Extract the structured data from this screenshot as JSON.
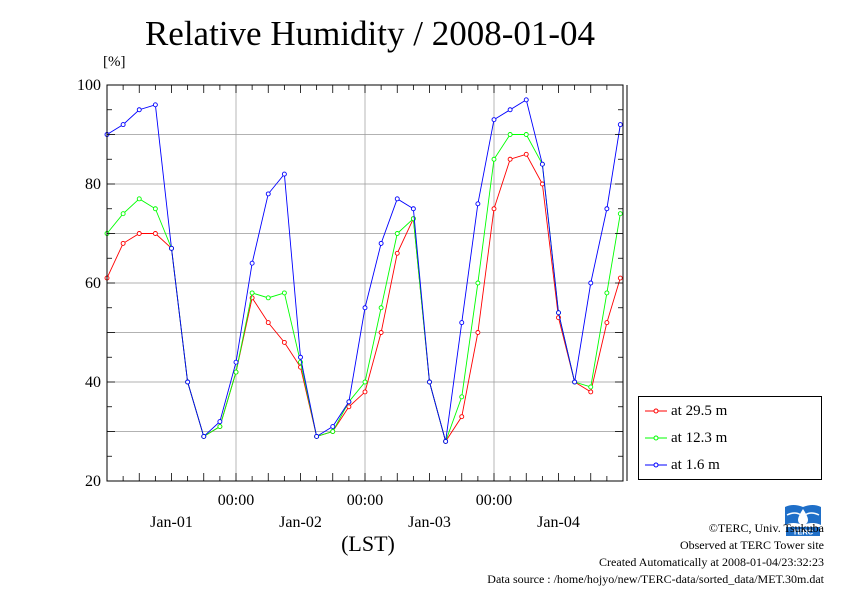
{
  "title": "Relative Humidity / 2008-01-04",
  "y_unit": "[%]",
  "x_label": "(LST)",
  "chart_data": {
    "type": "line",
    "title": "Relative Humidity / 2008-01-04",
    "ylabel": "[%]",
    "xlabel": "(LST)",
    "ylim": [
      20,
      100
    ],
    "y_ticks": [
      "20",
      "40",
      "60",
      "80",
      "100"
    ],
    "xlim": [
      "2008-01-01 00:00",
      "2008-01-05 00:00"
    ],
    "x_tick_labels": [
      {
        "time": "2008-01-02 00:00",
        "label": "00:00"
      },
      {
        "time": "2008-01-03 00:00",
        "label": "00:00"
      },
      {
        "time": "2008-01-04 00:00",
        "label": "00:00"
      }
    ],
    "day_labels": [
      {
        "time": "2008-01-01 12:00",
        "label": "Jan-01"
      },
      {
        "time": "2008-01-02 12:00",
        "label": "Jan-02"
      },
      {
        "time": "2008-01-03 12:00",
        "label": "Jan-03"
      },
      {
        "time": "2008-01-04 12:00",
        "label": "Jan-04"
      }
    ],
    "grid": true,
    "legend_position": "bottom-right, outside plot",
    "x_times": [
      "2008-01-01 00:00",
      "2008-01-01 03:00",
      "2008-01-01 06:00",
      "2008-01-01 09:00",
      "2008-01-01 12:00",
      "2008-01-01 15:00",
      "2008-01-01 18:00",
      "2008-01-01 21:00",
      "2008-01-02 00:00",
      "2008-01-02 03:00",
      "2008-01-02 06:00",
      "2008-01-02 09:00",
      "2008-01-02 12:00",
      "2008-01-02 15:00",
      "2008-01-02 18:00",
      "2008-01-02 21:00",
      "2008-01-03 00:00",
      "2008-01-03 03:00",
      "2008-01-03 06:00",
      "2008-01-03 09:00",
      "2008-01-03 12:00",
      "2008-01-03 15:00",
      "2008-01-03 18:00",
      "2008-01-03 21:00",
      "2008-01-04 00:00",
      "2008-01-04 03:00",
      "2008-01-04 06:00",
      "2008-01-04 09:00",
      "2008-01-04 12:00",
      "2008-01-04 15:00",
      "2008-01-04 18:00",
      "2008-01-04 21:00",
      "2008-01-04 23:30"
    ],
    "series": [
      {
        "name": "at 29.5 m",
        "color": "#ff0000",
        "values": [
          61,
          68,
          70,
          70,
          67,
          40,
          29,
          31,
          42,
          57,
          52,
          48,
          43,
          29,
          30,
          35,
          38,
          50,
          66,
          73,
          40,
          28,
          33,
          50,
          75,
          85,
          86,
          80,
          53,
          40,
          38,
          52,
          61
        ]
      },
      {
        "name": "at 12.3 m",
        "color": "#00ff00",
        "values": [
          70,
          74,
          77,
          75,
          67,
          40,
          29,
          31,
          42,
          58,
          57,
          58,
          44,
          29,
          30,
          36,
          40,
          55,
          70,
          73,
          40,
          28,
          37,
          60,
          85,
          90,
          90,
          84,
          54,
          40,
          39,
          58,
          74
        ]
      },
      {
        "name": "at 1.6 m",
        "color": "#0000ff",
        "values": [
          90,
          92,
          95,
          96,
          67,
          40,
          29,
          32,
          44,
          64,
          78,
          82,
          45,
          29,
          31,
          36,
          55,
          68,
          77,
          75,
          40,
          28,
          52,
          76,
          93,
          95,
          97,
          84,
          54,
          40,
          60,
          75,
          92
        ]
      }
    ]
  },
  "legend": [
    {
      "label": "at 29.5 m",
      "color": "#ff0000"
    },
    {
      "label": "at 12.3 m",
      "color": "#00ff00"
    },
    {
      "label": "at 1.6 m",
      "color": "#0000ff"
    }
  ],
  "credits": {
    "copyright": "©TERC, Univ. Tsukuba",
    "site": "Observed at TERC Tower site",
    "created": "Created Automatically at 2008-01-04/23:32:23",
    "source": "Data source : /home/hojyo/new/TERC-data/sorted_data/MET.30m.dat"
  },
  "logo_text": "TERC"
}
